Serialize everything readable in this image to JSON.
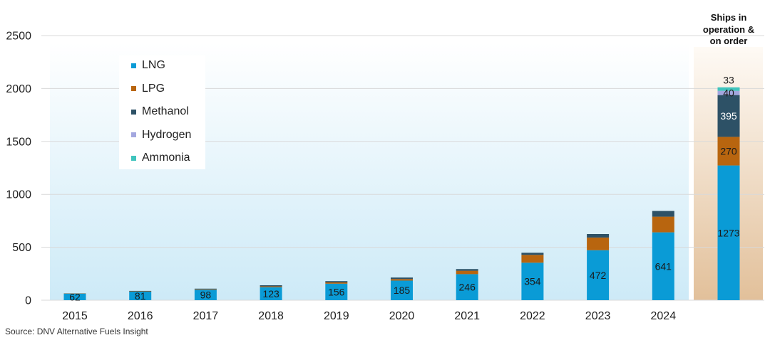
{
  "source": "Source: DNV Alternative Fuels Insight",
  "chart_data": {
    "type": "bar",
    "stacked": true,
    "ylim": [
      0,
      2500
    ],
    "yticks": [
      0,
      500,
      1000,
      1500,
      2000,
      2500
    ],
    "grid": true,
    "legend": "top-left",
    "categories": [
      "2015",
      "2016",
      "2017",
      "2018",
      "2019",
      "2020",
      "2021",
      "2022",
      "2023",
      "2024",
      "Ships in operation & on order"
    ],
    "series": [
      {
        "name": "LNG",
        "color": "#0a9bd6",
        "values": [
          62,
          81,
          98,
          123,
          156,
          185,
          246,
          354,
          472,
          641,
          1273
        ]
      },
      {
        "name": "LPG",
        "color": "#b8650f",
        "values": [
          2,
          3,
          5,
          8,
          12,
          15,
          32,
          74,
          120,
          148,
          270
        ]
      },
      {
        "name": "Methanol",
        "color": "#2d5166",
        "values": [
          1,
          4,
          6,
          10,
          12,
          14,
          16,
          20,
          33,
          54,
          395
        ]
      },
      {
        "name": "Hydrogen",
        "color": "#a3a7df",
        "values": [
          0,
          0,
          0,
          0,
          0,
          0,
          0,
          0,
          0,
          0,
          40
        ]
      },
      {
        "name": "Ammonia",
        "color": "#3fc4bd",
        "values": [
          0,
          0,
          0,
          0,
          0,
          0,
          0,
          0,
          0,
          0,
          33
        ]
      }
    ]
  }
}
